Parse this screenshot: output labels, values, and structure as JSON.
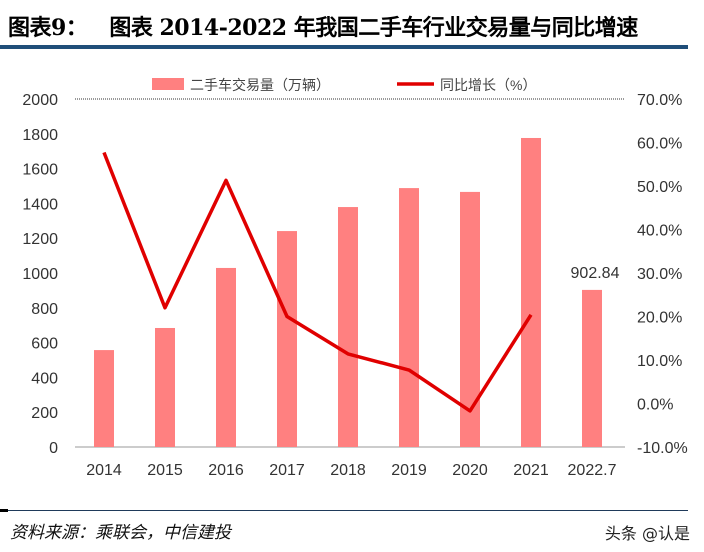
{
  "header": {
    "label": "图表9：",
    "title": "图表 2014-2022 年我国二手车行业交易量与同比增速"
  },
  "footer": {
    "source": "资料来源：乘联会，中信建投",
    "watermark": "头条 @认是"
  },
  "chart_data": {
    "type": "bar+line",
    "categories": [
      "2014",
      "2015",
      "2016",
      "2017",
      "2018",
      "2019",
      "2020",
      "2021",
      "2022.7"
    ],
    "series": [
      {
        "name": "二手车交易量（万辆）",
        "type": "bar",
        "axis": "left",
        "color": "#ff8080",
        "values": [
          557,
          684,
          1029,
          1241,
          1379,
          1488,
          1466,
          1776,
          902.84
        ]
      },
      {
        "name": "同比增长（%）",
        "type": "line",
        "axis": "right",
        "color": "#e00000",
        "values": [
          57.7,
          22.0,
          51.3,
          20.0,
          11.4,
          7.7,
          -1.7,
          20.4,
          null
        ]
      }
    ],
    "left_axis": {
      "min": 0,
      "max": 2000,
      "ticks": [
        "0",
        "200",
        "400",
        "600",
        "800",
        "1000",
        "1200",
        "1400",
        "1600",
        "1800",
        "2000"
      ]
    },
    "right_axis": {
      "min": -10,
      "max": 70,
      "ticks": [
        "-10.0%",
        "0.0%",
        "10.0%",
        "20.0%",
        "30.0%",
        "40.0%",
        "50.0%",
        "60.0%",
        "70.0%"
      ]
    },
    "annotations": [
      {
        "category": "2022.7",
        "text": "902.84"
      }
    ],
    "legend": "top",
    "grid": false
  }
}
